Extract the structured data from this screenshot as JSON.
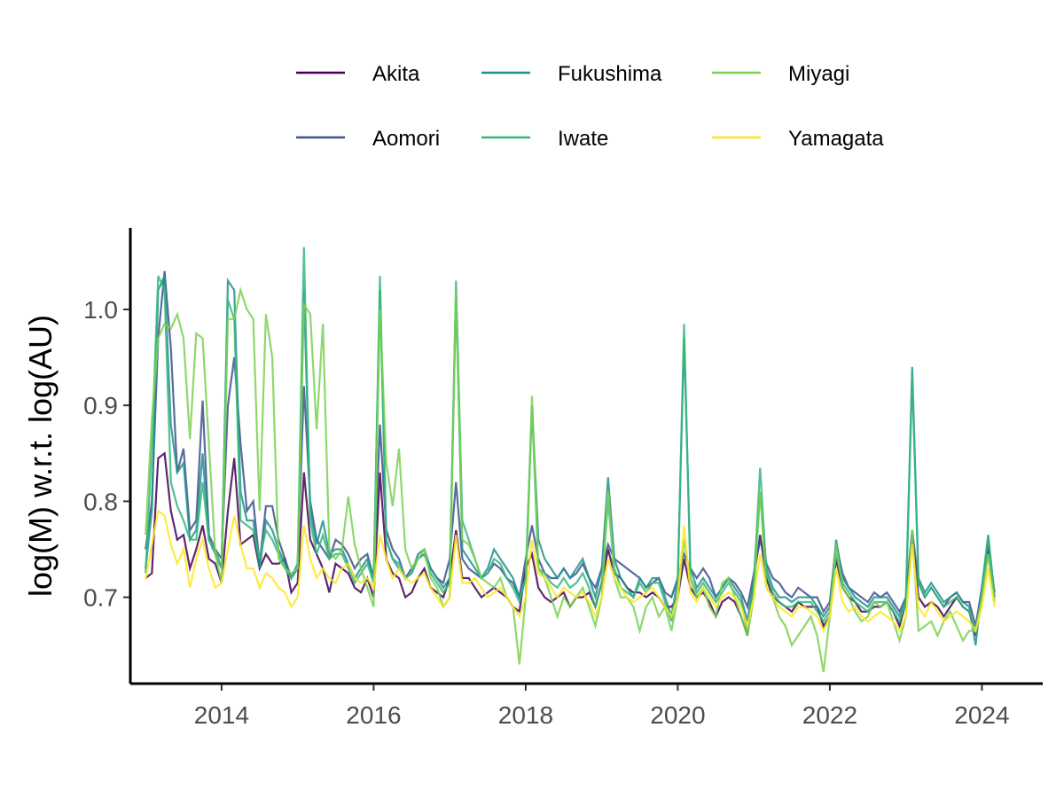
{
  "chart_data": {
    "type": "line",
    "xlabel": "",
    "ylabel": "log(M) w.r.t. log(AU)",
    "xlim": [
      2012.8,
      2024.8
    ],
    "ylim": [
      0.61,
      1.085
    ],
    "x_ticks": [
      2014,
      2016,
      2018,
      2020,
      2022,
      2024
    ],
    "y_ticks": [
      0.7,
      0.8,
      0.9,
      1.0
    ],
    "y_tick_labels": [
      "0.7",
      "0.8",
      "0.9",
      "1.0"
    ],
    "legend_position": "top",
    "grid": false,
    "x_start": "2013-01",
    "x_step": "month",
    "series": [
      {
        "name": "Akita",
        "color": "#440154",
        "values": [
          0.72,
          0.725,
          0.845,
          0.85,
          0.79,
          0.76,
          0.765,
          0.73,
          0.75,
          0.775,
          0.74,
          0.735,
          0.715,
          0.79,
          0.845,
          0.755,
          0.76,
          0.765,
          0.73,
          0.745,
          0.735,
          0.735,
          0.74,
          0.705,
          0.715,
          0.83,
          0.76,
          0.745,
          0.73,
          0.705,
          0.735,
          0.73,
          0.725,
          0.71,
          0.705,
          0.72,
          0.7,
          0.83,
          0.74,
          0.725,
          0.72,
          0.7,
          0.705,
          0.72,
          0.73,
          0.71,
          0.705,
          0.7,
          0.72,
          0.77,
          0.72,
          0.72,
          0.71,
          0.7,
          0.705,
          0.71,
          0.705,
          0.7,
          0.69,
          0.685,
          0.73,
          0.745,
          0.71,
          0.7,
          0.695,
          0.7,
          0.705,
          0.69,
          0.7,
          0.7,
          0.705,
          0.69,
          0.715,
          0.75,
          0.725,
          0.72,
          0.71,
          0.705,
          0.705,
          0.7,
          0.705,
          0.7,
          0.69,
          0.69,
          0.7,
          0.74,
          0.71,
          0.7,
          0.705,
          0.695,
          0.68,
          0.695,
          0.7,
          0.695,
          0.68,
          0.66,
          0.72,
          0.765,
          0.72,
          0.7,
          0.695,
          0.69,
          0.685,
          0.695,
          0.69,
          0.69,
          0.69,
          0.67,
          0.68,
          0.74,
          0.71,
          0.7,
          0.695,
          0.685,
          0.685,
          0.69,
          0.69,
          0.695,
          0.685,
          0.67,
          0.695,
          0.765,
          0.7,
          0.69,
          0.695,
          0.69,
          0.68,
          0.69,
          0.7,
          0.69,
          0.685,
          0.66,
          0.705,
          0.75,
          0.7
        ]
      },
      {
        "name": "Aomori",
        "color": "#3b528b",
        "values": [
          0.75,
          0.8,
          0.97,
          1.04,
          0.96,
          0.83,
          0.855,
          0.77,
          0.78,
          0.905,
          0.765,
          0.75,
          0.74,
          0.9,
          0.95,
          0.86,
          0.79,
          0.8,
          0.735,
          0.795,
          0.795,
          0.76,
          0.74,
          0.72,
          0.735,
          0.92,
          0.8,
          0.76,
          0.75,
          0.74,
          0.76,
          0.755,
          0.745,
          0.73,
          0.74,
          0.745,
          0.72,
          0.88,
          0.77,
          0.75,
          0.74,
          0.72,
          0.73,
          0.74,
          0.745,
          0.73,
          0.72,
          0.715,
          0.74,
          0.82,
          0.74,
          0.73,
          0.725,
          0.72,
          0.725,
          0.735,
          0.73,
          0.72,
          0.715,
          0.7,
          0.74,
          0.775,
          0.74,
          0.725,
          0.72,
          0.72,
          0.73,
          0.72,
          0.725,
          0.735,
          0.72,
          0.71,
          0.73,
          0.755,
          0.74,
          0.735,
          0.73,
          0.725,
          0.72,
          0.71,
          0.715,
          0.72,
          0.705,
          0.7,
          0.72,
          0.745,
          0.73,
          0.72,
          0.73,
          0.72,
          0.7,
          0.71,
          0.72,
          0.715,
          0.705,
          0.69,
          0.725,
          0.76,
          0.735,
          0.72,
          0.715,
          0.705,
          0.7,
          0.71,
          0.705,
          0.7,
          0.7,
          0.685,
          0.695,
          0.755,
          0.725,
          0.71,
          0.705,
          0.7,
          0.695,
          0.705,
          0.7,
          0.705,
          0.695,
          0.685,
          0.7,
          0.77,
          0.715,
          0.7,
          0.71,
          0.7,
          0.69,
          0.7,
          0.705,
          0.695,
          0.695,
          0.67,
          0.71,
          0.755,
          0.705
        ]
      },
      {
        "name": "Fukushima",
        "color": "#21908d",
        "values": [
          0.73,
          0.79,
          1.02,
          1.035,
          0.88,
          0.83,
          0.84,
          0.76,
          0.77,
          0.85,
          0.76,
          0.745,
          0.73,
          1.03,
          1.02,
          0.81,
          0.78,
          0.78,
          0.73,
          0.78,
          0.77,
          0.75,
          0.735,
          0.72,
          0.73,
          1.02,
          0.79,
          0.755,
          0.78,
          0.745,
          0.75,
          0.75,
          0.735,
          0.72,
          0.73,
          0.74,
          0.72,
          1.02,
          0.76,
          0.74,
          0.73,
          0.72,
          0.725,
          0.745,
          0.75,
          0.73,
          0.72,
          0.71,
          0.72,
          1.02,
          0.75,
          0.74,
          0.73,
          0.72,
          0.73,
          0.75,
          0.74,
          0.73,
          0.72,
          0.7,
          0.72,
          0.9,
          0.76,
          0.74,
          0.73,
          0.72,
          0.73,
          0.72,
          0.73,
          0.74,
          0.72,
          0.7,
          0.73,
          0.825,
          0.74,
          0.72,
          0.71,
          0.7,
          0.72,
          0.71,
          0.72,
          0.72,
          0.7,
          0.68,
          0.72,
          0.97,
          0.73,
          0.71,
          0.72,
          0.71,
          0.7,
          0.71,
          0.72,
          0.71,
          0.7,
          0.675,
          0.72,
          0.81,
          0.73,
          0.71,
          0.7,
          0.7,
          0.695,
          0.7,
          0.7,
          0.7,
          0.69,
          0.68,
          0.69,
          0.76,
          0.72,
          0.71,
          0.7,
          0.695,
          0.69,
          0.7,
          0.7,
          0.7,
          0.69,
          0.68,
          0.7,
          0.94,
          0.72,
          0.705,
          0.715,
          0.705,
          0.695,
          0.7,
          0.705,
          0.695,
          0.69,
          0.65,
          0.71,
          0.765,
          0.7
        ]
      },
      {
        "name": "Iwate",
        "color": "#35b779",
        "values": [
          0.725,
          0.86,
          1.035,
          1.02,
          0.82,
          0.795,
          0.78,
          0.76,
          0.76,
          0.82,
          0.76,
          0.75,
          0.73,
          1.01,
          0.99,
          0.78,
          0.775,
          0.77,
          0.74,
          0.77,
          0.76,
          0.745,
          0.73,
          0.72,
          0.735,
          1.065,
          0.78,
          0.745,
          0.765,
          0.74,
          0.745,
          0.745,
          0.73,
          0.715,
          0.725,
          0.735,
          0.715,
          1.035,
          0.76,
          0.74,
          0.735,
          0.72,
          0.725,
          0.74,
          0.745,
          0.725,
          0.715,
          0.705,
          0.715,
          1.03,
          0.78,
          0.76,
          0.74,
          0.72,
          0.725,
          0.74,
          0.735,
          0.72,
          0.71,
          0.695,
          0.72,
          0.9,
          0.73,
          0.725,
          0.715,
          0.71,
          0.72,
          0.71,
          0.715,
          0.725,
          0.71,
          0.69,
          0.715,
          0.8,
          0.73,
          0.71,
          0.705,
          0.7,
          0.715,
          0.705,
          0.715,
          0.715,
          0.695,
          0.675,
          0.715,
          0.985,
          0.72,
          0.705,
          0.715,
          0.705,
          0.695,
          0.705,
          0.715,
          0.705,
          0.695,
          0.665,
          0.715,
          0.835,
          0.725,
          0.705,
          0.695,
          0.69,
          0.69,
          0.695,
          0.695,
          0.695,
          0.685,
          0.675,
          0.685,
          0.745,
          0.715,
          0.705,
          0.695,
          0.69,
          0.685,
          0.695,
          0.695,
          0.695,
          0.685,
          0.675,
          0.695,
          0.93,
          0.715,
          0.7,
          0.71,
          0.7,
          0.69,
          0.695,
          0.7,
          0.69,
          0.685,
          0.665,
          0.7,
          0.765,
          0.7
        ]
      },
      {
        "name": "Miyagi",
        "color": "#7ad151",
        "values": [
          0.765,
          0.885,
          0.97,
          0.985,
          0.98,
          0.995,
          0.97,
          0.865,
          0.975,
          0.97,
          0.86,
          0.745,
          0.715,
          0.99,
          0.99,
          1.02,
          1.0,
          0.99,
          0.79,
          0.995,
          0.95,
          0.74,
          0.73,
          0.725,
          0.73,
          1.005,
          0.995,
          0.875,
          0.985,
          0.75,
          0.74,
          0.75,
          0.805,
          0.755,
          0.73,
          0.71,
          0.69,
          1.0,
          0.84,
          0.795,
          0.855,
          0.75,
          0.73,
          0.74,
          0.75,
          0.72,
          0.71,
          0.69,
          0.7,
          1.02,
          0.76,
          0.755,
          0.74,
          0.72,
          0.715,
          0.71,
          0.72,
          0.7,
          0.69,
          0.63,
          0.7,
          0.91,
          0.73,
          0.72,
          0.7,
          0.68,
          0.7,
          0.69,
          0.7,
          0.71,
          0.69,
          0.67,
          0.7,
          0.81,
          0.72,
          0.7,
          0.7,
          0.69,
          0.665,
          0.69,
          0.7,
          0.68,
          0.69,
          0.665,
          0.7,
          0.76,
          0.72,
          0.7,
          0.71,
          0.69,
          0.68,
          0.715,
          0.72,
          0.7,
          0.68,
          0.66,
          0.7,
          0.81,
          0.71,
          0.7,
          0.68,
          0.67,
          0.65,
          0.66,
          0.67,
          0.68,
          0.66,
          0.622,
          0.68,
          0.755,
          0.71,
          0.7,
          0.685,
          0.675,
          0.68,
          0.695,
          0.69,
          0.695,
          0.675,
          0.655,
          0.68,
          0.77,
          0.665,
          0.67,
          0.675,
          0.66,
          0.675,
          0.685,
          0.67,
          0.655,
          0.665,
          0.665,
          0.7,
          0.745,
          0.695
        ]
      },
      {
        "name": "Yamagata",
        "color": "#fde725",
        "values": [
          0.718,
          0.755,
          0.79,
          0.785,
          0.755,
          0.735,
          0.75,
          0.71,
          0.74,
          0.76,
          0.73,
          0.71,
          0.715,
          0.75,
          0.785,
          0.755,
          0.73,
          0.73,
          0.71,
          0.725,
          0.72,
          0.71,
          0.705,
          0.69,
          0.7,
          0.775,
          0.74,
          0.72,
          0.73,
          0.72,
          0.715,
          0.73,
          0.735,
          0.72,
          0.715,
          0.72,
          0.71,
          0.765,
          0.74,
          0.72,
          0.73,
          0.72,
          0.715,
          0.72,
          0.725,
          0.71,
          0.7,
          0.69,
          0.7,
          0.765,
          0.715,
          0.715,
          0.72,
          0.71,
          0.7,
          0.705,
          0.71,
          0.7,
          0.69,
          0.68,
          0.7,
          0.76,
          0.725,
          0.72,
          0.71,
          0.7,
          0.71,
          0.705,
          0.7,
          0.705,
          0.695,
          0.68,
          0.7,
          0.74,
          0.72,
          0.71,
          0.7,
          0.695,
          0.7,
          0.705,
          0.71,
          0.7,
          0.69,
          0.68,
          0.7,
          0.775,
          0.705,
          0.695,
          0.71,
          0.7,
          0.69,
          0.7,
          0.705,
          0.7,
          0.69,
          0.67,
          0.7,
          0.745,
          0.71,
          0.7,
          0.69,
          0.685,
          0.68,
          0.69,
          0.69,
          0.685,
          0.68,
          0.665,
          0.68,
          0.73,
          0.695,
          0.685,
          0.69,
          0.68,
          0.675,
          0.68,
          0.685,
          0.68,
          0.675,
          0.665,
          0.68,
          0.755,
          0.69,
          0.68,
          0.695,
          0.685,
          0.675,
          0.68,
          0.685,
          0.68,
          0.675,
          0.665,
          0.69,
          0.73,
          0.69
        ]
      }
    ]
  }
}
